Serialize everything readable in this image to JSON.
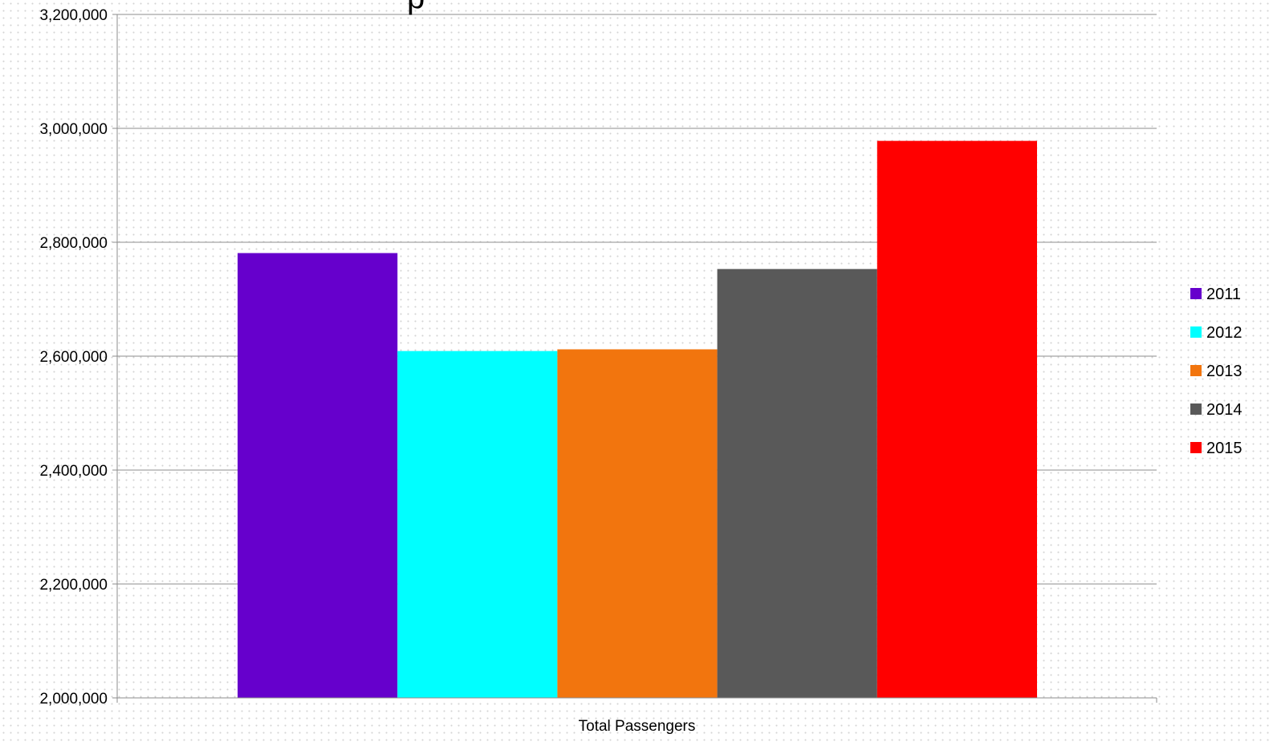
{
  "chart_data": {
    "type": "bar",
    "title": "",
    "title_fragment": "p",
    "xlabel": "",
    "ylabel": "",
    "categories": [
      "Total Passengers"
    ],
    "series": [
      {
        "name": "2011",
        "values": [
          2781000
        ],
        "color": "#6600CC"
      },
      {
        "name": "2012",
        "values": [
          2609000
        ],
        "color": "#00FFFF"
      },
      {
        "name": "2013",
        "values": [
          2612000
        ],
        "color": "#F2750E"
      },
      {
        "name": "2014",
        "values": [
          2753000
        ],
        "color": "#595959"
      },
      {
        "name": "2015",
        "values": [
          2978000
        ],
        "color": "#FF0000"
      }
    ],
    "ylim": [
      2000000,
      3200000
    ],
    "yticks": [
      2000000,
      2200000,
      2400000,
      2600000,
      2800000,
      3000000,
      3200000
    ],
    "ytick_labels": [
      "2,000,000",
      "2,200,000",
      "2,400,000",
      "2,600,000",
      "2,800,000",
      "3,000,000",
      "3,200,000"
    ],
    "grid": true,
    "legend_position": "right"
  }
}
